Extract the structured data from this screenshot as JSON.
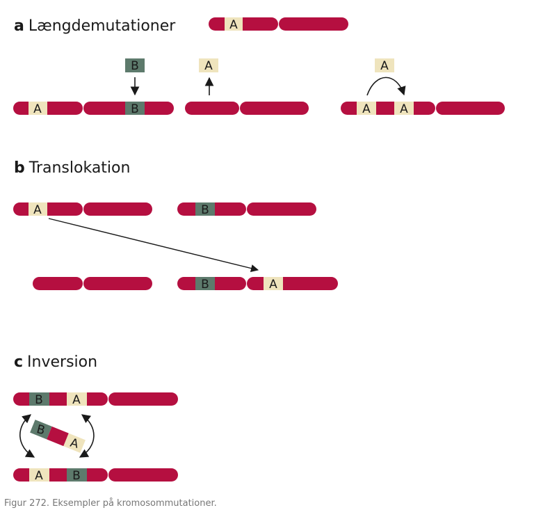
{
  "colors": {
    "chromosome": "#b50f40",
    "segment_a": "#efe4bd",
    "segment_b": "#5d7a6c",
    "arrow": "#1a1a1a",
    "text": "#1a1a1a",
    "caption": "#777777"
  },
  "sections": {
    "a": {
      "letter": "a",
      "title": "Længdemutationer"
    },
    "b": {
      "letter": "b",
      "title": "Translokation"
    },
    "c": {
      "letter": "c",
      "title": "Inversion"
    }
  },
  "labels": {
    "a": "A",
    "b": "B"
  },
  "caption": "Figur 272. Eksempler på kromosommutationer."
}
